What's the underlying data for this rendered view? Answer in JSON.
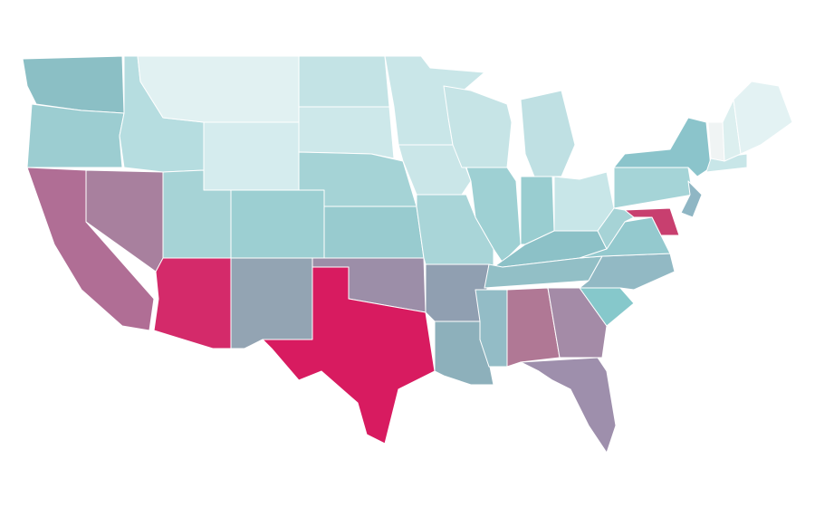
{
  "map": {
    "regions": [
      {
        "color": "#8bbfc5"
      },
      {
        "color": "#9ccdd1"
      },
      {
        "color": "#b06e95"
      },
      {
        "color": "#a8809e"
      },
      {
        "color": "#b6dde0"
      },
      {
        "color": "#e1f1f2"
      },
      {
        "color": "#d5ecee"
      },
      {
        "color": "#a6d3d6"
      },
      {
        "color": "#d42a6a"
      },
      {
        "color": "#9ccfd2"
      },
      {
        "color": "#93a4b3"
      },
      {
        "color": "#c3e3e5"
      },
      {
        "color": "#cde8ea"
      },
      {
        "color": "#a5d3d6"
      },
      {
        "color": "#98cbcf"
      },
      {
        "color": "#9c8ea8"
      },
      {
        "color": "#d81b60"
      },
      {
        "color": "#c9e6e8"
      },
      {
        "color": "#cae6e8"
      },
      {
        "color": "#a9d5d8"
      },
      {
        "color": "#909fb1"
      },
      {
        "color": "#8db0bb"
      },
      {
        "color": "#c6e4e6"
      },
      {
        "color": "#9ed0d3"
      },
      {
        "color": "#bfe0e3"
      },
      {
        "color": "#99cdd0"
      },
      {
        "color": "#c8e6e8"
      },
      {
        "color": "#8cc1c7"
      },
      {
        "color": "#92bfc6"
      },
      {
        "color": "#93bcc6"
      },
      {
        "color": "#b07895"
      },
      {
        "color": "#a48ba7"
      },
      {
        "color": "#9e8fac"
      },
      {
        "color": "#86c8cb"
      },
      {
        "color": "#92b9c4"
      },
      {
        "color": "#94c9ce"
      },
      {
        "color": "#a6d3d6"
      },
      {
        "color": "#a5d4d7"
      },
      {
        "color": "#8bc4cb"
      },
      {
        "color": "#c83f6f"
      },
      {
        "color": "#8fb6c4"
      },
      {
        "color": "#c8e6e8"
      },
      {
        "color": "#f0f4f4"
      },
      {
        "color": "#dcefef"
      },
      {
        "color": "#e3f2f3"
      }
    ]
  }
}
